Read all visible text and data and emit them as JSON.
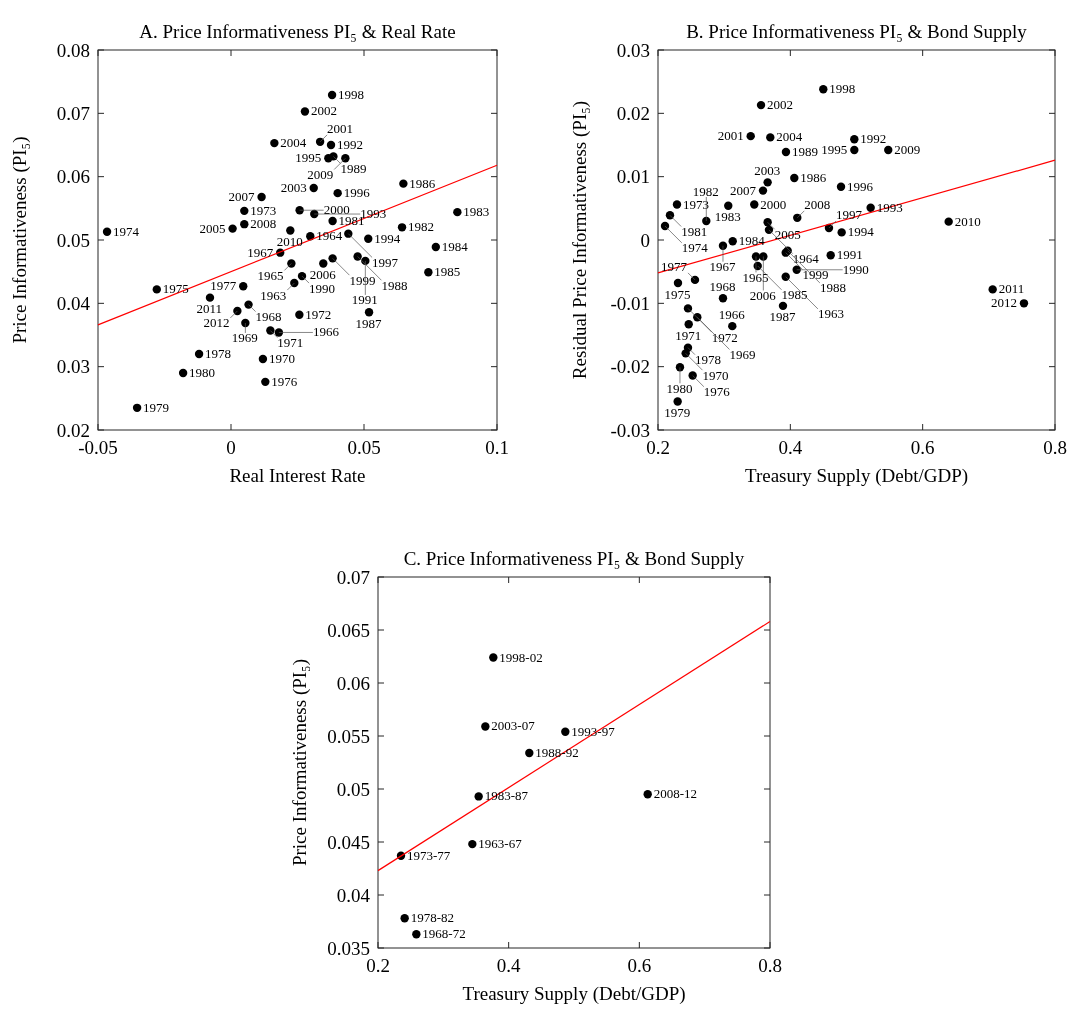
{
  "chart_data": [
    {
      "type": "scatter",
      "title": "A. Price Informativeness PI₅ & Real Rate",
      "xlabel": "Real Interest Rate",
      "ylabel": "Price Informativeness (PI₅)",
      "xlim": [
        -0.05,
        0.1
      ],
      "xticks": [
        -0.05,
        0,
        0.05,
        0.1
      ],
      "ylim": [
        0.02,
        0.08
      ],
      "yticks": [
        0.02,
        0.03,
        0.04,
        0.05,
        0.06,
        0.07,
        0.08
      ],
      "grid": false,
      "series": [
        {
          "marker": "circle",
          "color": "#000000",
          "x": [
            0.038,
            0.0278,
            0.0163,
            0.0335,
            0.0376,
            0.0366,
            0.0385,
            0.043,
            0.0648,
            0.0311,
            0.0401,
            0.0115,
            0.005,
            0.0258,
            0.0313,
            0.0851,
            0.005,
            0.0382,
            0.0006,
            -0.0466,
            0.0223,
            0.0643,
            0.0298,
            0.0441,
            0.0516,
            0.077,
            0.0185,
            0.0227,
            0.0347,
            0.0382,
            0.0476,
            0.0505,
            0.0742,
            0.0267,
            0.0238,
            0.0046,
            -0.0279,
            -0.0079,
            0.0066,
            0.0024,
            0.0257,
            0.0519,
            0.0054,
            0.0148,
            0.018,
            -0.012,
            0.012,
            -0.018,
            0.0129,
            -0.0353
          ],
          "values": [
            0.0729,
            0.0703,
            0.0653,
            0.0655,
            0.065,
            0.0629,
            0.0632,
            0.0629,
            0.0589,
            0.0582,
            0.0574,
            0.0568,
            0.0546,
            0.0547,
            0.0541,
            0.0544,
            0.0525,
            0.053,
            0.0518,
            0.0513,
            0.0515,
            0.052,
            0.0506,
            0.051,
            0.0502,
            0.0489,
            0.048,
            0.0463,
            0.0463,
            0.0471,
            0.0474,
            0.0467,
            0.0449,
            0.0443,
            0.0432,
            0.0427,
            0.0422,
            0.0409,
            0.0398,
            0.0388,
            0.0382,
            0.0386,
            0.0369,
            0.0357,
            0.0354,
            0.032,
            0.0312,
            0.029,
            0.0276,
            0.0235
          ]
        },
        {
          "type": "line",
          "color": "#ff0000",
          "x": [
            -0.05,
            0.1
          ],
          "values": [
            0.0366,
            0.0618
          ]
        }
      ],
      "annotations": [
        {
          "text": "1998",
          "x": 0.038,
          "y": 0.0729
        },
        {
          "text": "2002",
          "x": 0.0278,
          "y": 0.0703
        },
        {
          "text": "2004",
          "x": 0.0163,
          "y": 0.0653
        },
        {
          "text": "2001",
          "x": 0.0335,
          "y": 0.0655
        },
        {
          "text": "1992",
          "x": 0.0376,
          "y": 0.065
        },
        {
          "text": "1995",
          "x": 0.0366,
          "y": 0.0629
        },
        {
          "text": "1989",
          "x": 0.0385,
          "y": 0.0632
        },
        {
          "text": "2009",
          "x": 0.043,
          "y": 0.0629
        },
        {
          "text": "1986",
          "x": 0.0648,
          "y": 0.0589
        },
        {
          "text": "2003",
          "x": 0.0311,
          "y": 0.0582
        },
        {
          "text": "1996",
          "x": 0.0401,
          "y": 0.0574
        },
        {
          "text": "2007",
          "x": 0.0115,
          "y": 0.0568
        },
        {
          "text": "1973",
          "x": 0.005,
          "y": 0.0546
        },
        {
          "text": "2000",
          "x": 0.0258,
          "y": 0.0547
        },
        {
          "text": "1993",
          "x": 0.0313,
          "y": 0.0541
        },
        {
          "text": "1983",
          "x": 0.0851,
          "y": 0.0544
        },
        {
          "text": "2008",
          "x": 0.005,
          "y": 0.0525
        },
        {
          "text": "1981",
          "x": 0.0382,
          "y": 0.053
        },
        {
          "text": "2005",
          "x": 0.0006,
          "y": 0.0518
        },
        {
          "text": "1974",
          "x": -0.0466,
          "y": 0.0513
        },
        {
          "text": "2010",
          "x": 0.0223,
          "y": 0.0515
        },
        {
          "text": "1982",
          "x": 0.0643,
          "y": 0.052
        },
        {
          "text": "1964",
          "x": 0.0298,
          "y": 0.0506
        },
        {
          "text": "1997",
          "x": 0.0441,
          "y": 0.051
        },
        {
          "text": "1994",
          "x": 0.0516,
          "y": 0.0502
        },
        {
          "text": "1984",
          "x": 0.077,
          "y": 0.0489
        },
        {
          "text": "1967",
          "x": 0.0185,
          "y": 0.048
        },
        {
          "text": "1965",
          "x": 0.0227,
          "y": 0.0463
        },
        {
          "text": "2006",
          "x": 0.0347,
          "y": 0.0463
        },
        {
          "text": "1999",
          "x": 0.0382,
          "y": 0.0471
        },
        {
          "text": "1988",
          "x": 0.0476,
          "y": 0.0474
        },
        {
          "text": "1991",
          "x": 0.0505,
          "y": 0.0467
        },
        {
          "text": "1985",
          "x": 0.0742,
          "y": 0.0449
        },
        {
          "text": "1990",
          "x": 0.0267,
          "y": 0.0443
        },
        {
          "text": "1963",
          "x": 0.0238,
          "y": 0.0432
        },
        {
          "text": "1977",
          "x": 0.0046,
          "y": 0.0427
        },
        {
          "text": "1975",
          "x": -0.0279,
          "y": 0.0422
        },
        {
          "text": "2011",
          "x": -0.0079,
          "y": 0.0409
        },
        {
          "text": "1968",
          "x": 0.0066,
          "y": 0.0398
        },
        {
          "text": "2012",
          "x": 0.0024,
          "y": 0.0388
        },
        {
          "text": "1972",
          "x": 0.0257,
          "y": 0.0382
        },
        {
          "text": "1987",
          "x": 0.0519,
          "y": 0.0386
        },
        {
          "text": "1969",
          "x": 0.0054,
          "y": 0.0369
        },
        {
          "text": "1971",
          "x": 0.0148,
          "y": 0.0357
        },
        {
          "text": "1966",
          "x": 0.018,
          "y": 0.0354
        },
        {
          "text": "1978",
          "x": -0.012,
          "y": 0.032
        },
        {
          "text": "1970",
          "x": 0.012,
          "y": 0.0312
        },
        {
          "text": "1980",
          "x": -0.018,
          "y": 0.029
        },
        {
          "text": "1976",
          "x": 0.0129,
          "y": 0.0276
        },
        {
          "text": "1979",
          "x": -0.0353,
          "y": 0.0235
        }
      ]
    },
    {
      "type": "scatter",
      "title": "B. Price Informativeness PI₅ & Bond Supply",
      "xlabel": "Treasury Supply (Debt/GDP)",
      "ylabel": "Residual Price Informativeness (PI₅)",
      "xlim": [
        0.2,
        0.8
      ],
      "xticks": [
        0.2,
        0.4,
        0.6,
        0.8
      ],
      "ylim": [
        -0.03,
        0.03
      ],
      "yticks": [
        -0.03,
        -0.02,
        -0.01,
        0,
        0.01,
        0.02,
        0.03
      ],
      "grid": false,
      "series": [
        {
          "marker": "circle",
          "color": "#000000",
          "x": [
            0.4498,
            0.3557,
            0.3401,
            0.3697,
            0.4967,
            0.4967,
            0.548,
            0.3934,
            0.3657,
            0.406,
            0.4766,
            0.3587,
            0.2287,
            0.3062,
            0.3455,
            0.5214,
            0.2181,
            0.273,
            0.3657,
            0.4105,
            0.2106,
            0.4584,
            0.3677,
            0.4776,
            0.6393,
            0.3129,
            0.2982,
            0.3481,
            0.3592,
            0.393,
            0.396,
            0.461,
            0.3507,
            0.4096,
            0.393,
            0.2302,
            0.2559,
            0.7058,
            0.7531,
            0.2982,
            0.3889,
            0.2453,
            0.2594,
            0.2464,
            0.3123,
            0.2453,
            0.2418,
            0.2332,
            0.2524,
            0.2297
          ],
          "values": [
            0.0238,
            0.0213,
            0.0164,
            0.0162,
            0.0159,
            0.0142,
            0.0142,
            0.0139,
            0.0091,
            0.0098,
            0.0084,
            0.0078,
            0.0056,
            0.0054,
            0.0056,
            0.0051,
            0.0039,
            0.003,
            0.0028,
            0.0035,
            0.0022,
            0.0019,
            0.0016,
            0.0012,
            0.0029,
            -0.0002,
            -0.0009,
            -0.0026,
            -0.0026,
            -0.002,
            -0.0017,
            -0.0024,
            -0.0041,
            -0.0047,
            -0.0058,
            -0.0068,
            -0.0063,
            -0.0078,
            -0.01,
            -0.0092,
            -0.0104,
            -0.0108,
            -0.0122,
            -0.0133,
            -0.0136,
            -0.017,
            -0.0179,
            -0.0201,
            -0.0214,
            -0.0255
          ]
        },
        {
          "type": "line",
          "color": "#ff0000",
          "x": [
            0.2,
            0.8
          ],
          "values": [
            -0.0052,
            0.0126
          ]
        }
      ],
      "annotations": [
        {
          "text": "1998",
          "x": 0.4498,
          "y": 0.0238
        },
        {
          "text": "2002",
          "x": 0.3557,
          "y": 0.0213
        },
        {
          "text": "2001",
          "x": 0.3401,
          "y": 0.0164
        },
        {
          "text": "2004",
          "x": 0.3697,
          "y": 0.0162
        },
        {
          "text": "1992",
          "x": 0.4967,
          "y": 0.0159
        },
        {
          "text": "1995",
          "x": 0.4967,
          "y": 0.0142
        },
        {
          "text": "2009",
          "x": 0.548,
          "y": 0.0142
        },
        {
          "text": "1989",
          "x": 0.3934,
          "y": 0.0139
        },
        {
          "text": "2003",
          "x": 0.3657,
          "y": 0.0091
        },
        {
          "text": "1986",
          "x": 0.406,
          "y": 0.0098
        },
        {
          "text": "1996",
          "x": 0.4766,
          "y": 0.0084
        },
        {
          "text": "2007",
          "x": 0.3587,
          "y": 0.0078
        },
        {
          "text": "1973",
          "x": 0.2287,
          "y": 0.0056
        },
        {
          "text": "1983",
          "x": 0.3062,
          "y": 0.0054
        },
        {
          "text": "2000",
          "x": 0.3455,
          "y": 0.0056
        },
        {
          "text": "1993",
          "x": 0.5214,
          "y": 0.0051
        },
        {
          "text": "1981",
          "x": 0.2181,
          "y": 0.0039
        },
        {
          "text": "1982",
          "x": 0.273,
          "y": 0.003
        },
        {
          "text": "2005",
          "x": 0.3657,
          "y": 0.0028
        },
        {
          "text": "2008",
          "x": 0.4105,
          "y": 0.0035
        },
        {
          "text": "1974",
          "x": 0.2106,
          "y": 0.0022
        },
        {
          "text": "1997",
          "x": 0.4584,
          "y": 0.0019
        },
        {
          "text": "1964",
          "x": 0.3677,
          "y": 0.0016
        },
        {
          "text": "1994",
          "x": 0.4776,
          "y": 0.0012
        },
        {
          "text": "2010",
          "x": 0.6393,
          "y": 0.0029
        },
        {
          "text": "1984",
          "x": 0.3129,
          "y": -0.0002
        },
        {
          "text": "1967",
          "x": 0.2982,
          "y": -0.0009
        },
        {
          "text": "1965",
          "x": 0.3481,
          "y": -0.0026
        },
        {
          "text": "2006",
          "x": 0.3592,
          "y": -0.0026
        },
        {
          "text": "1999",
          "x": 0.393,
          "y": -0.002
        },
        {
          "text": "1988",
          "x": 0.396,
          "y": -0.0017
        },
        {
          "text": "1991",
          "x": 0.461,
          "y": -0.0024
        },
        {
          "text": "1985",
          "x": 0.3507,
          "y": -0.0041
        },
        {
          "text": "1990",
          "x": 0.4096,
          "y": -0.0047
        },
        {
          "text": "1963",
          "x": 0.393,
          "y": -0.0058
        },
        {
          "text": "1975",
          "x": 0.2302,
          "y": -0.0068
        },
        {
          "text": "1977",
          "x": 0.2559,
          "y": -0.0063
        },
        {
          "text": "2011",
          "x": 0.7058,
          "y": -0.0078
        },
        {
          "text": "2012",
          "x": 0.7531,
          "y": -0.01
        },
        {
          "text": "1968",
          "x": 0.2982,
          "y": -0.0092
        },
        {
          "text": "1987",
          "x": 0.3889,
          "y": -0.0104
        },
        {
          "text": "1972",
          "x": 0.2453,
          "y": -0.0108
        },
        {
          "text": "1969",
          "x": 0.2594,
          "y": -0.0122
        },
        {
          "text": "1971",
          "x": 0.2464,
          "y": -0.0133
        },
        {
          "text": "1966",
          "x": 0.3123,
          "y": -0.0136
        },
        {
          "text": "1978",
          "x": 0.2453,
          "y": -0.017
        },
        {
          "text": "1970",
          "x": 0.2418,
          "y": -0.0179
        },
        {
          "text": "1980",
          "x": 0.2332,
          "y": -0.0201
        },
        {
          "text": "1976",
          "x": 0.2524,
          "y": -0.0214
        },
        {
          "text": "1979",
          "x": 0.2297,
          "y": -0.0255
        }
      ]
    },
    {
      "type": "scatter",
      "title": "C. Price Informativeness PI₅ & Bond Supply",
      "xlabel": "Treasury Supply (Debt/GDP)",
      "ylabel": "Price Informativeness (PI₅)",
      "xlim": [
        0.2,
        0.8
      ],
      "xticks": [
        0.2,
        0.4,
        0.6,
        0.8
      ],
      "ylim": [
        0.035,
        0.07
      ],
      "yticks": [
        0.035,
        0.04,
        0.045,
        0.05,
        0.055,
        0.06,
        0.065,
        0.07
      ],
      "grid": false,
      "series": [
        {
          "marker": "circle",
          "color": "#000000",
          "x": [
            0.3765,
            0.3643,
            0.4867,
            0.4316,
            0.3541,
            0.6128,
            0.3444,
            0.2352,
            0.2408,
            0.2587
          ],
          "values": [
            0.0624,
            0.0559,
            0.0554,
            0.0534,
            0.0493,
            0.0495,
            0.0448,
            0.0437,
            0.0378,
            0.0363
          ]
        },
        {
          "type": "line",
          "color": "#ff0000",
          "x": [
            0.2,
            0.8
          ],
          "values": [
            0.0423,
            0.0658
          ]
        }
      ],
      "annotations": [
        {
          "text": "1998-02",
          "x": 0.3765,
          "y": 0.0624
        },
        {
          "text": "2003-07",
          "x": 0.3643,
          "y": 0.0559
        },
        {
          "text": "1993-97",
          "x": 0.4867,
          "y": 0.0554
        },
        {
          "text": "1988-92",
          "x": 0.4316,
          "y": 0.0534
        },
        {
          "text": "1983-87",
          "x": 0.3541,
          "y": 0.0493
        },
        {
          "text": "2008-12",
          "x": 0.6128,
          "y": 0.0495
        },
        {
          "text": "1963-67",
          "x": 0.3444,
          "y": 0.0448
        },
        {
          "text": "1973-77",
          "x": 0.2352,
          "y": 0.0437
        },
        {
          "text": "1978-82",
          "x": 0.2408,
          "y": 0.0378
        },
        {
          "text": "1968-72",
          "x": 0.2587,
          "y": 0.0363
        }
      ]
    }
  ]
}
